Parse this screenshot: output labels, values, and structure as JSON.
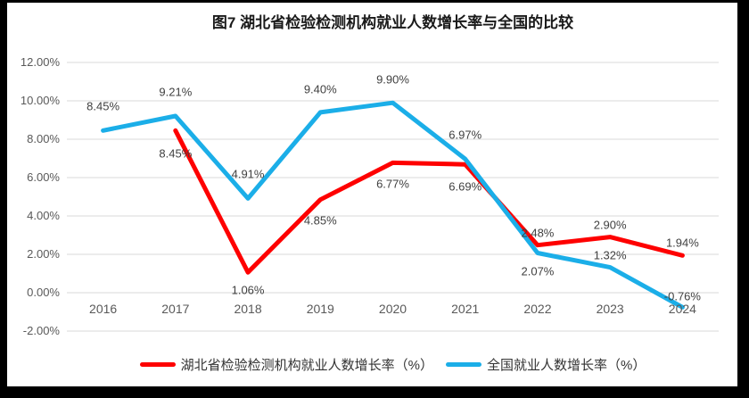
{
  "chart_data": {
    "type": "line",
    "title": "图7 湖北省检验检测机构就业人数增长率与全国的比较",
    "categories": [
      "2016",
      "2017",
      "2018",
      "2019",
      "2020",
      "2021",
      "2022",
      "2023",
      "2024"
    ],
    "y_axis": {
      "min": -2,
      "max": 12,
      "step": 2,
      "ticks": [
        {
          "label": "12.00%",
          "value": 12
        },
        {
          "label": "10.00%",
          "value": 10
        },
        {
          "label": "8.00%",
          "value": 8
        },
        {
          "label": "6.00%",
          "value": 6
        },
        {
          "label": "4.00%",
          "value": 4
        },
        {
          "label": "2.00%",
          "value": 2
        },
        {
          "label": "0.00%",
          "value": 0
        },
        {
          "label": "-2.00%",
          "value": -2
        }
      ]
    },
    "grid": true,
    "grid_color": "#d9d9d9",
    "legend_position": "bottom",
    "series": [
      {
        "name": "湖北省检验检测机构就业人数增长率（%）",
        "color": "#fe0000",
        "values": [
          null,
          8.45,
          1.06,
          4.85,
          6.77,
          6.69,
          2.48,
          2.9,
          1.94
        ],
        "labels": [
          null,
          "8.45%",
          "1.06%",
          "4.85%",
          "6.77%",
          "6.69%",
          "2.48%",
          "2.90%",
          "1.94%"
        ],
        "label_dy": [
          0,
          26,
          20,
          23,
          24,
          25,
          -14,
          -14,
          -14
        ]
      },
      {
        "name": "全国就业人数增长率（%）",
        "color": "#1baee8",
        "values": [
          8.45,
          9.21,
          4.91,
          9.4,
          9.9,
          6.97,
          2.07,
          1.32,
          -0.76
        ],
        "labels": [
          "8.45%",
          "9.21%",
          "4.91%",
          "9.40%",
          "9.90%",
          "6.97%",
          "2.07%",
          "1.32%",
          "-0.76%"
        ],
        "label_dy": [
          -27,
          -27,
          -27,
          -26,
          -26,
          -27,
          21,
          -14,
          -12
        ]
      }
    ]
  }
}
